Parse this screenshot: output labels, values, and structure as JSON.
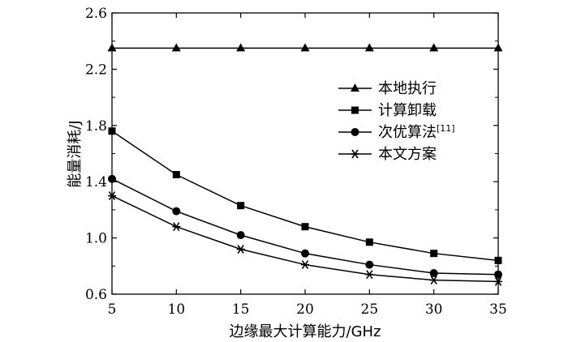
{
  "chart_data": {
    "type": "line",
    "xlabel": "边缘最大计算能力/GHz",
    "ylabel": "能量消耗/J",
    "x": [
      5,
      10,
      15,
      20,
      25,
      30,
      35
    ],
    "xlim": [
      5,
      35
    ],
    "ylim": [
      0.6,
      2.6
    ],
    "xticks": [
      "5",
      "10",
      "15",
      "20",
      "25",
      "30",
      "35"
    ],
    "yticks": [
      "0.6",
      "1.0",
      "1.4",
      "1.8",
      "2.2",
      "2.6"
    ],
    "grid": false,
    "legend_position": "top-right",
    "series": [
      {
        "name": "本地执行",
        "marker": "triangle",
        "values": [
          2.35,
          2.35,
          2.35,
          2.35,
          2.35,
          2.35,
          2.35
        ]
      },
      {
        "name": "计算卸载",
        "marker": "square",
        "values": [
          1.76,
          1.45,
          1.23,
          1.08,
          0.97,
          0.89,
          0.84
        ]
      },
      {
        "name": "次优算法",
        "name_sup": "[11]",
        "marker": "circle",
        "values": [
          1.42,
          1.19,
          1.02,
          0.89,
          0.81,
          0.75,
          0.74
        ]
      },
      {
        "name": "本文方案",
        "marker": "asterisk",
        "values": [
          1.3,
          1.08,
          0.92,
          0.81,
          0.74,
          0.7,
          0.69
        ]
      }
    ]
  }
}
